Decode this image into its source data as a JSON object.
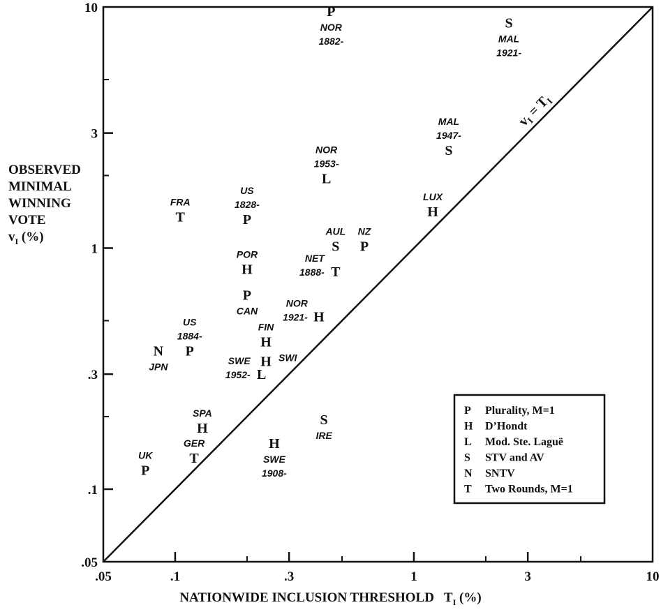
{
  "chart_data": {
    "type": "scatter",
    "title": "",
    "ylabel_lines": [
      "OBSERVED",
      "MINIMAL",
      "WINNING",
      "VOTE"
    ],
    "ylabel_symbol": "v",
    "ylabel_sub": "I",
    "ylabel_unit": "(%)",
    "xlabel_text": "NATIONWIDE INCLUSION THRESHOLD",
    "xlabel_symbol": "T",
    "xlabel_sub": "I",
    "xlabel_unit": "(%)",
    "x_scale": "log",
    "y_scale": "log",
    "xlim": [
      0.05,
      10
    ],
    "ylim": [
      0.05,
      10
    ],
    "grid": false,
    "x_ticks": [
      {
        "value": 0.05,
        "label": ".05"
      },
      {
        "value": 0.1,
        "label": ".1"
      },
      {
        "value": 0.3,
        "label": ".3"
      },
      {
        "value": 1,
        "label": "1"
      },
      {
        "value": 3,
        "label": "3"
      },
      {
        "value": 10,
        "label": "10"
      }
    ],
    "y_ticks": [
      {
        "value": 0.05,
        "label": ".05"
      },
      {
        "value": 0.1,
        "label": ".1"
      },
      {
        "value": 0.3,
        "label": ".3"
      },
      {
        "value": 1,
        "label": "1"
      },
      {
        "value": 3,
        "label": "3"
      },
      {
        "value": 10,
        "label": "10"
      }
    ],
    "minor_ticks": [
      0.2,
      0.5,
      2,
      5
    ],
    "diagonal_label": {
      "v": "v",
      "vsub": "I",
      "eq": " = ",
      "t": "T",
      "tsub": "I"
    },
    "points": [
      {
        "code": "P",
        "x": 0.45,
        "y": 9.6,
        "label": [
          "NOR",
          "1882-"
        ],
        "label_pos": "below"
      },
      {
        "code": "S",
        "x": 2.5,
        "y": 8.6,
        "label": [
          "MAL",
          "1921-"
        ],
        "label_pos": "below"
      },
      {
        "code": "S",
        "x": 1.4,
        "y": 2.55,
        "label": [
          "MAL",
          "1947-"
        ],
        "label_pos": "above"
      },
      {
        "code": "L",
        "x": 0.43,
        "y": 1.95,
        "label": [
          "NOR",
          "1953-"
        ],
        "label_pos": "above"
      },
      {
        "code": "H",
        "x": 1.2,
        "y": 1.42,
        "label": [
          "LUX"
        ],
        "label_pos": "above"
      },
      {
        "code": "T",
        "x": 0.105,
        "y": 1.35,
        "label": [
          "FRA"
        ],
        "label_pos": "above"
      },
      {
        "code": "P",
        "x": 0.2,
        "y": 1.32,
        "label": [
          "US",
          "1828-"
        ],
        "label_pos": "above"
      },
      {
        "code": "S",
        "x": 0.47,
        "y": 1.02,
        "label": [
          "AUL"
        ],
        "label_pos": "above"
      },
      {
        "code": "P",
        "x": 0.62,
        "y": 1.02,
        "label": [
          "NZ"
        ],
        "label_pos": "above"
      },
      {
        "code": "T",
        "x": 0.47,
        "y": 0.8,
        "label": [
          "NET",
          "1888-"
        ],
        "label_pos": "left"
      },
      {
        "code": "H",
        "x": 0.2,
        "y": 0.82,
        "label": [
          "POR"
        ],
        "label_pos": "above"
      },
      {
        "code": "P",
        "x": 0.2,
        "y": 0.64,
        "label": [
          "CAN"
        ],
        "label_pos": "below"
      },
      {
        "code": "H",
        "x": 0.4,
        "y": 0.52,
        "label": [
          "NOR",
          "1921-"
        ],
        "label_pos": "left"
      },
      {
        "code": "H",
        "x": 0.24,
        "y": 0.41,
        "label": [
          "FIN"
        ],
        "label_pos": "above"
      },
      {
        "code": "P",
        "x": 0.115,
        "y": 0.375,
        "label": [
          "US",
          "1884-"
        ],
        "label_pos": "above"
      },
      {
        "code": "N",
        "x": 0.085,
        "y": 0.375,
        "label": [
          "JPN"
        ],
        "label_pos": "below"
      },
      {
        "code": "H",
        "x": 0.24,
        "y": 0.34,
        "label": [
          "SWI"
        ],
        "label_pos": "right"
      },
      {
        "code": "L",
        "x": 0.23,
        "y": 0.3,
        "label": [
          "SWE",
          "1952-"
        ],
        "label_pos": "left"
      },
      {
        "code": "H",
        "x": 0.13,
        "y": 0.18,
        "label": [
          "SPA"
        ],
        "label_pos": "above"
      },
      {
        "code": "S",
        "x": 0.42,
        "y": 0.195,
        "label": [
          "IRE"
        ],
        "label_pos": "below"
      },
      {
        "code": "H",
        "x": 0.26,
        "y": 0.155,
        "label": [
          "SWE",
          "1908-"
        ],
        "label_pos": "below"
      },
      {
        "code": "T",
        "x": 0.12,
        "y": 0.135,
        "label": [
          "GER"
        ],
        "label_pos": "above"
      },
      {
        "code": "P",
        "x": 0.075,
        "y": 0.12,
        "label": [
          "UK"
        ],
        "label_pos": "above"
      }
    ],
    "legend": {
      "placement": "bottom-right",
      "entries": [
        {
          "code": "P",
          "text": "Plurality, M=1"
        },
        {
          "code": "H",
          "text": "D’Hondt"
        },
        {
          "code": "L",
          "text": "Mod. Ste. Laguë"
        },
        {
          "code": "S",
          "text": "STV and AV"
        },
        {
          "code": "N",
          "text": "SNTV"
        },
        {
          "code": "T",
          "text": "Two Rounds, M=1"
        }
      ]
    }
  }
}
